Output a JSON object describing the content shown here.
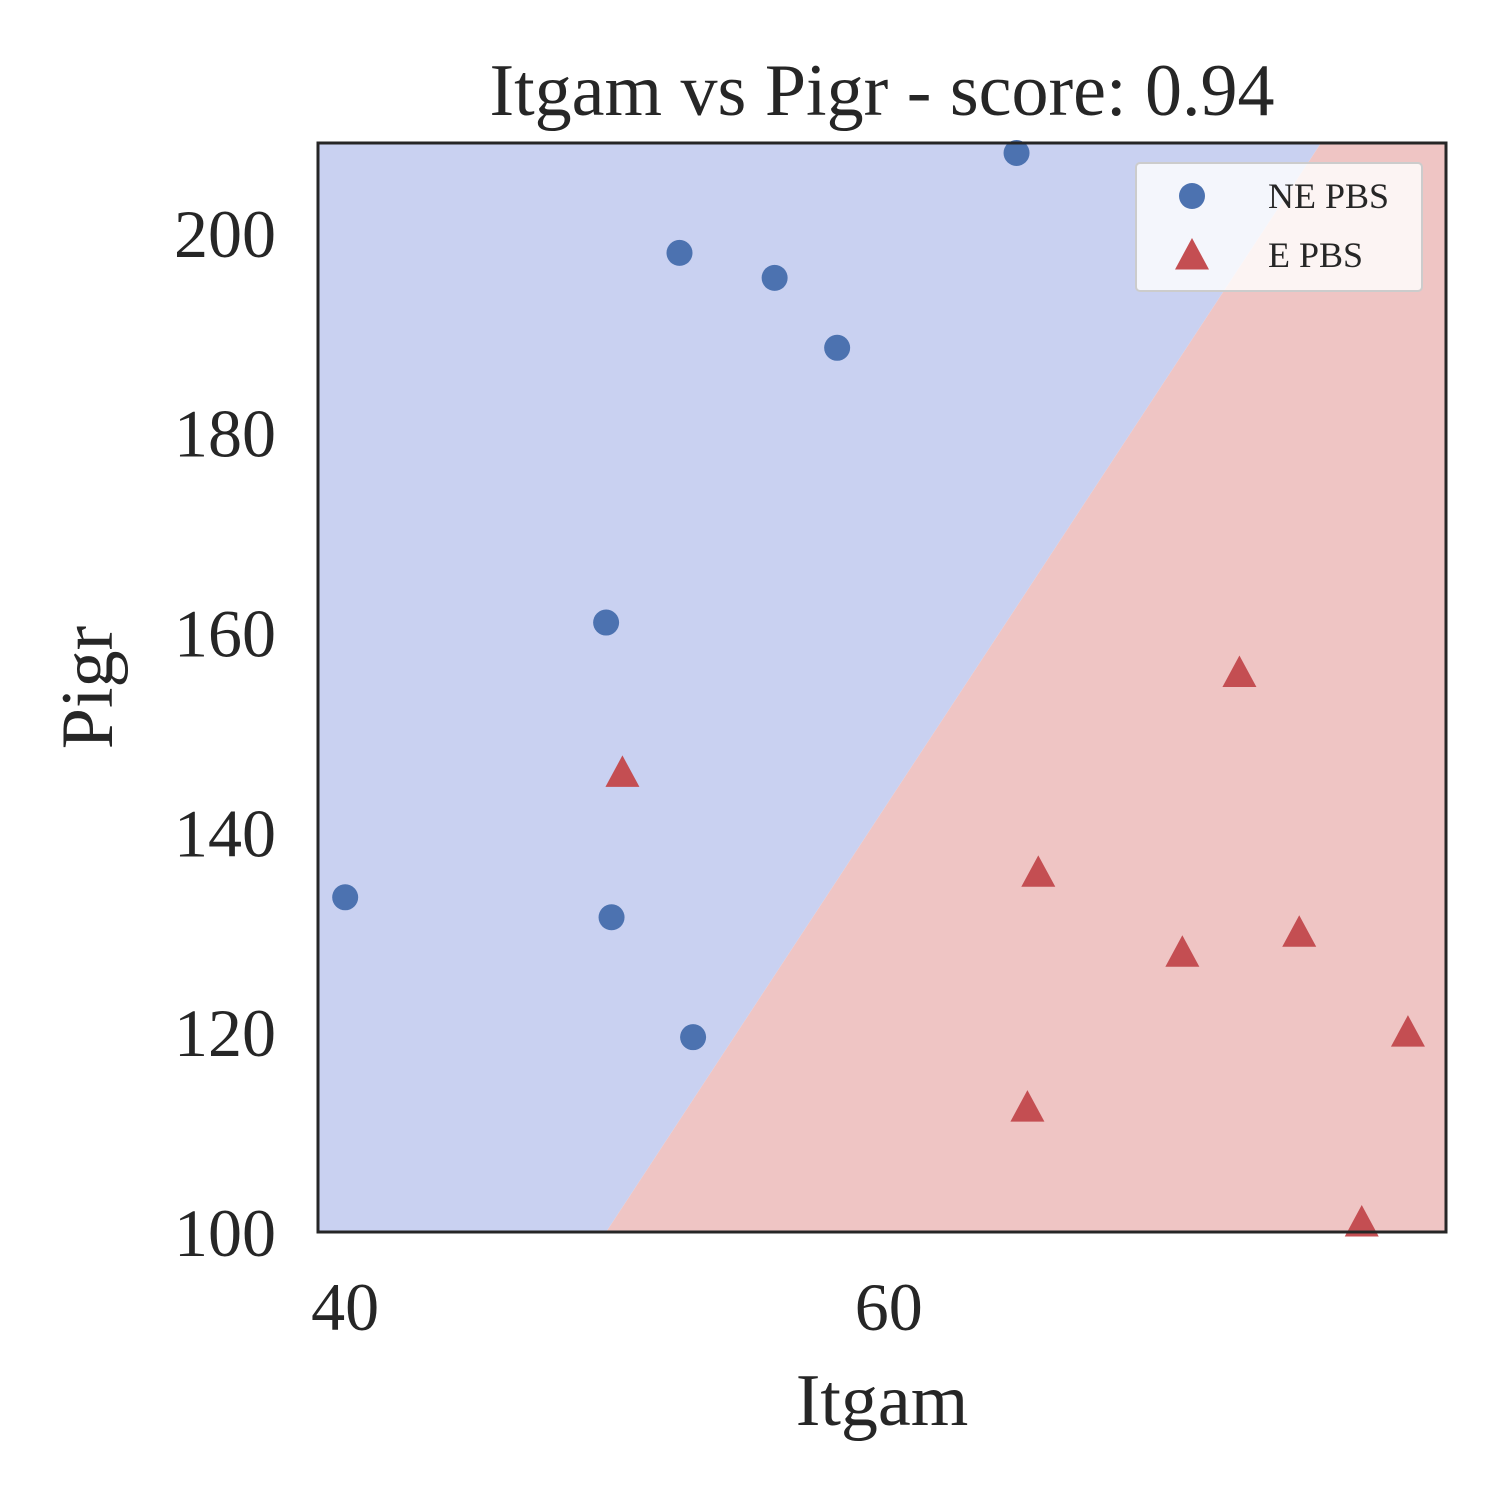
{
  "chart_data": {
    "type": "scatter",
    "title": "Itgam vs Pigr - score: 0.94",
    "xlabel": "Itgam",
    "ylabel": "Pigr",
    "xlim": [
      39.0,
      80.5
    ],
    "ylim": [
      100,
      209
    ],
    "xticks": [
      40,
      60
    ],
    "yticks": [
      100,
      120,
      140,
      160,
      180,
      200
    ],
    "grid": false,
    "legend_position": "top-right",
    "decision_boundary": {
      "points": [
        [
          49.6,
          100
        ],
        [
          75.9,
          209
        ]
      ],
      "left_region_color": "#c9d1f1",
      "right_region_color": "#efc5c4"
    },
    "series": [
      {
        "name": "NE PBS",
        "marker": "circle",
        "color": "#4c72b0",
        "points": [
          [
            40.0,
            133.5
          ],
          [
            49.6,
            161
          ],
          [
            49.8,
            131.5
          ],
          [
            52.3,
            198
          ],
          [
            52.8,
            119.5
          ],
          [
            55.8,
            195.5
          ],
          [
            58.1,
            188.5
          ],
          [
            64.7,
            208
          ]
        ]
      },
      {
        "name": "E PBS",
        "marker": "triangle",
        "color": "#c44e52",
        "points": [
          [
            50.2,
            146
          ],
          [
            65.1,
            112.5
          ],
          [
            65.5,
            136
          ],
          [
            70.8,
            128
          ],
          [
            72.9,
            156
          ],
          [
            75.1,
            130
          ],
          [
            77.4,
            101
          ],
          [
            79.1,
            120
          ]
        ]
      }
    ]
  }
}
